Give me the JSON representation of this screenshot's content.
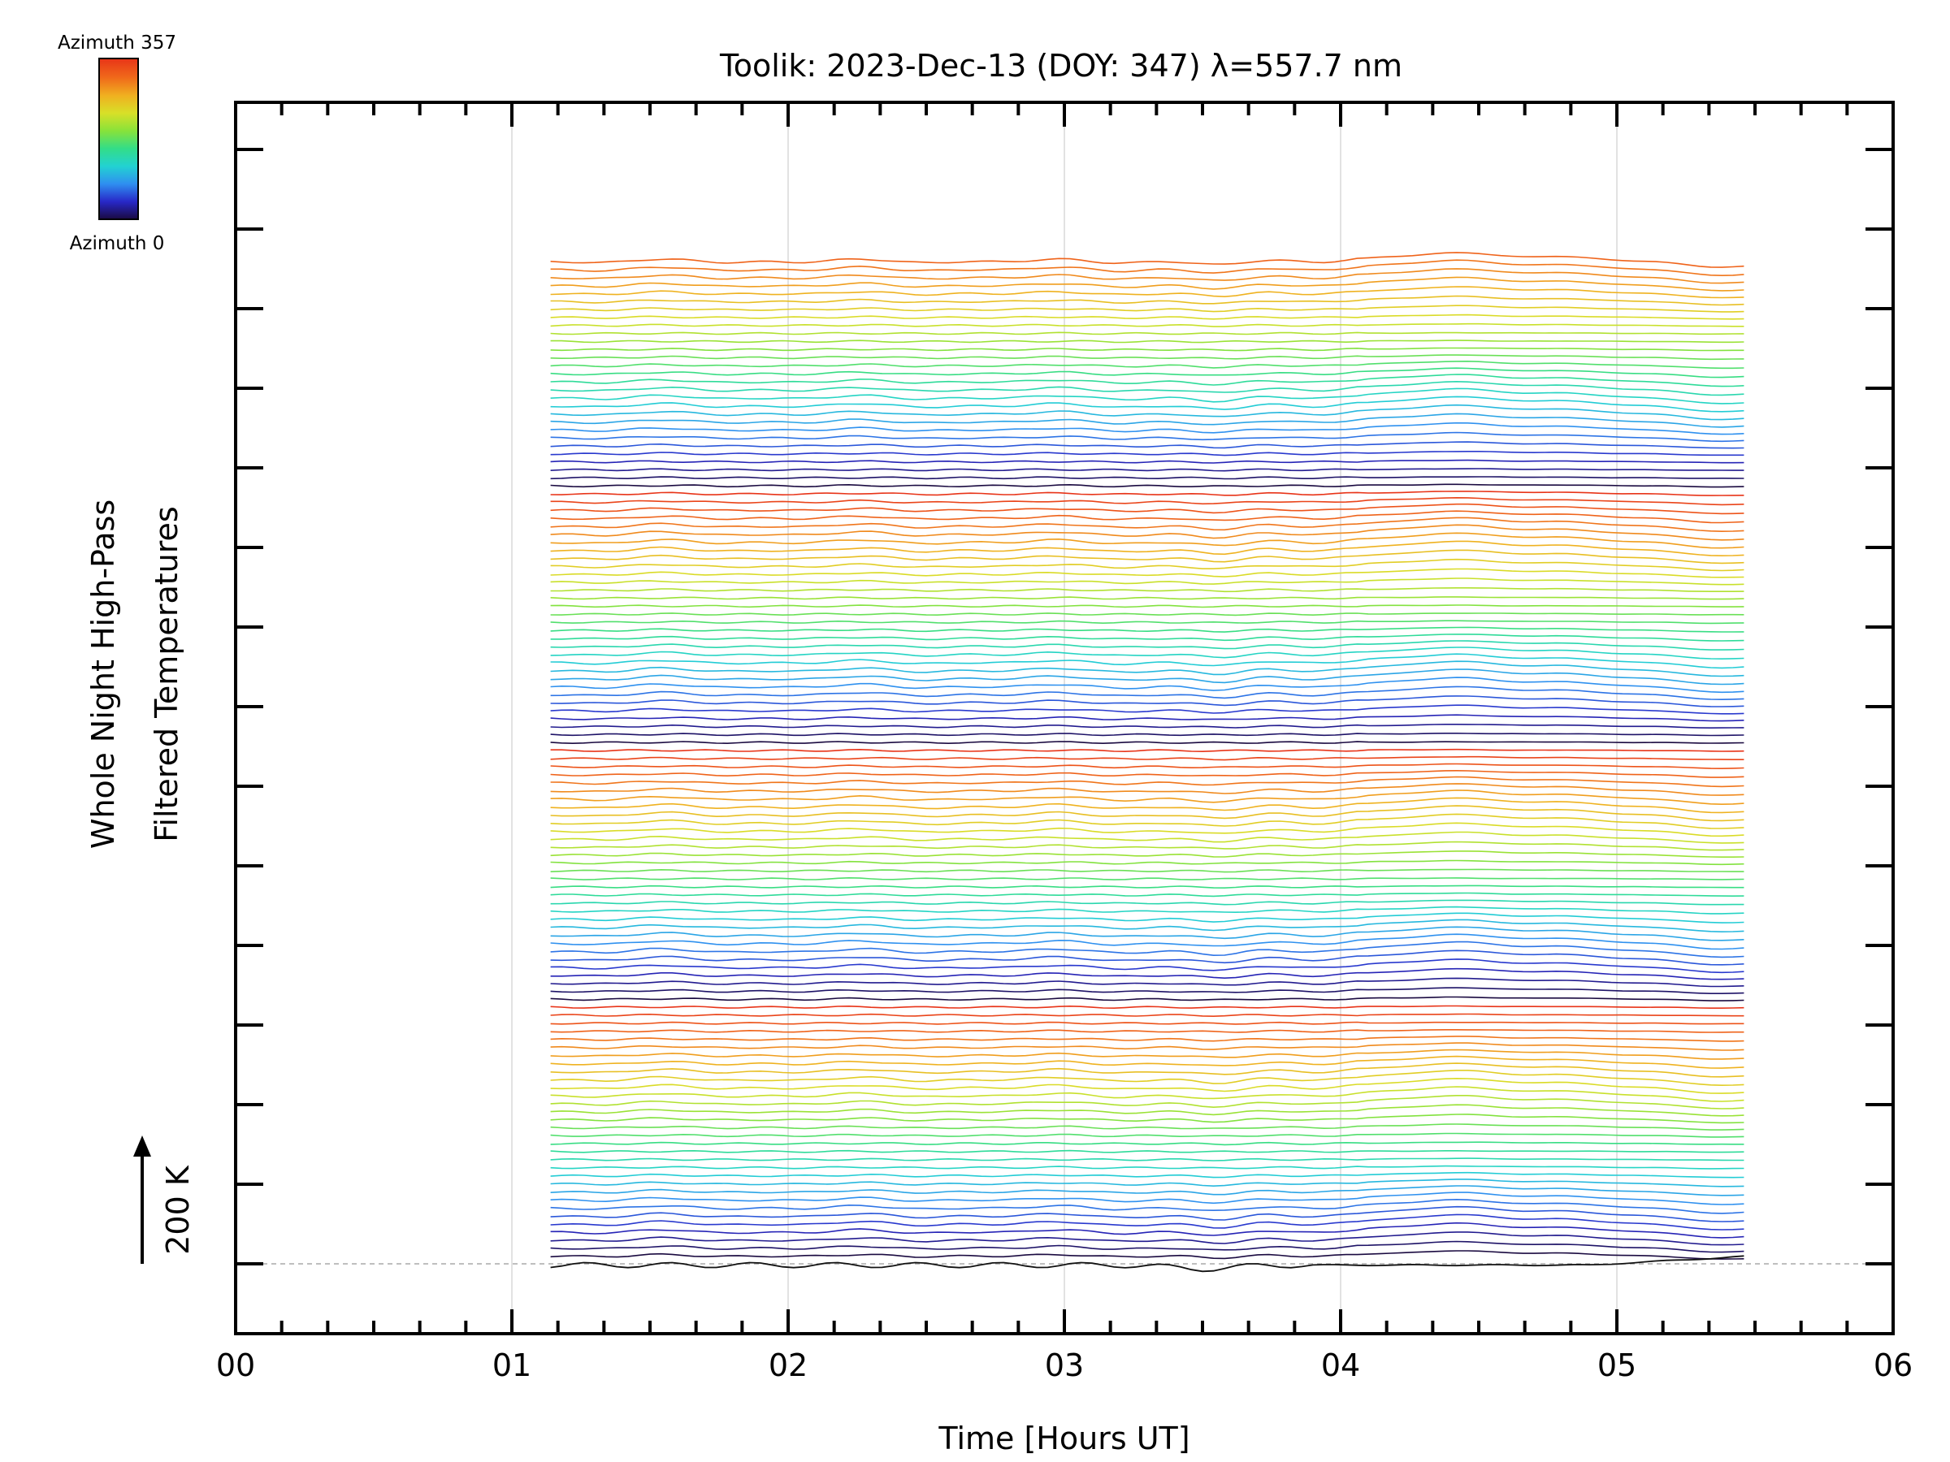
{
  "chart_data": {
    "type": "line",
    "title": "Toolik: 2023-Dec-13 (DOY: 347) λ=557.7 nm",
    "xlabel": "Time [Hours UT]",
    "ylabel_line1": "Whole Night High-Pass",
    "ylabel_line2": "Filtered Temperatures",
    "scale_label": "200 K",
    "xlim": [
      0,
      6
    ],
    "xticks": [
      "00",
      "01",
      "02",
      "03",
      "04",
      "05",
      "06"
    ],
    "x_range_data": [
      1.14,
      5.49
    ],
    "legend": {
      "type": "colorbar",
      "placement": "top-left",
      "top_label": "Azimuth  357",
      "bottom_label": "Azimuth  0"
    },
    "stacked_traces": 125,
    "traces_per_cycle": 32,
    "trace_offset_K": 12.5,
    "grid": "vertical at whole hours",
    "baseline": "dashed at zero offset",
    "colors": {
      "colormap": [
        "#1a0a40",
        "#2828c8",
        "#2f8ff0",
        "#22d2d2",
        "#33dd88",
        "#88e23a",
        "#d8e028",
        "#f0b020",
        "#f06a1a",
        "#e83418"
      ],
      "frame": "#000000",
      "grid": "#d8d8d8",
      "baseline": "#aaaaaa"
    }
  }
}
